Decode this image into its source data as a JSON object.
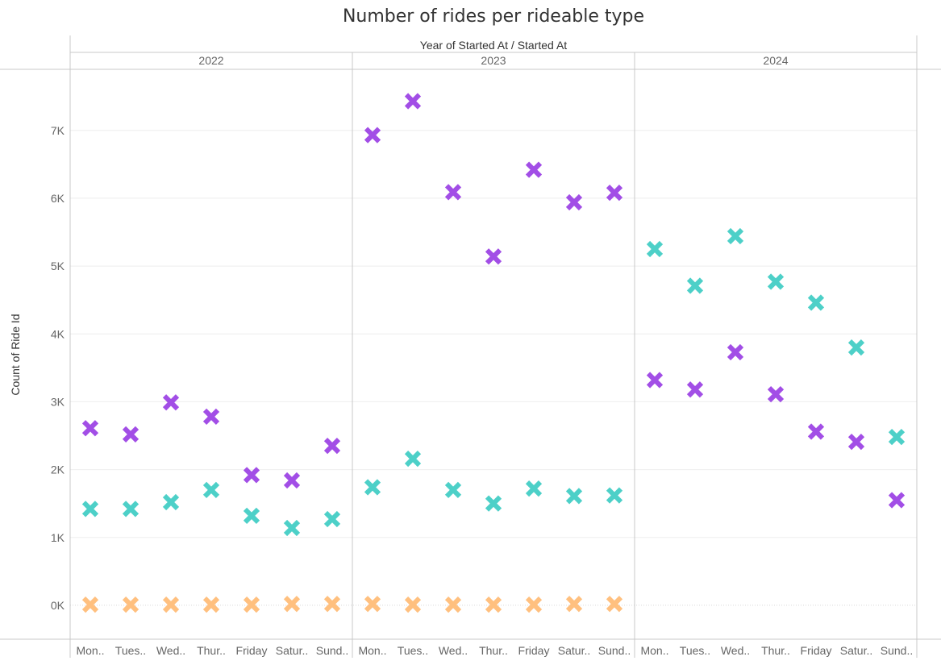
{
  "chart_data": {
    "type": "scatter",
    "title": "Number of rides per rideable type",
    "column_header": "Year of Started At / Started At",
    "ylabel": "Count of Ride Id",
    "ylim": [
      -500,
      7900
    ],
    "yticks": [
      0,
      1000,
      2000,
      3000,
      4000,
      5000,
      6000,
      7000
    ],
    "ytick_labels": [
      "0K",
      "1K",
      "2K",
      "3K",
      "4K",
      "5K",
      "6K",
      "7K"
    ],
    "grid": true,
    "marker": "x",
    "years": [
      "2022",
      "2023",
      "2024"
    ],
    "day_labels": [
      "Mon..",
      "Tues..",
      "Wed..",
      "Thur..",
      "Friday",
      "Satur..",
      "Sund.."
    ],
    "series": [
      {
        "color": "#a24ee6",
        "values": {
          "2022": [
            2610,
            2520,
            2990,
            2780,
            1920,
            1840,
            2350
          ],
          "2023": [
            6930,
            7430,
            6090,
            5140,
            6420,
            5940,
            6080
          ],
          "2024": [
            3320,
            3180,
            3730,
            3110,
            2560,
            2410,
            1550
          ]
        }
      },
      {
        "color": "#4dd0c8",
        "values": {
          "2022": [
            1420,
            1420,
            1520,
            1700,
            1320,
            1140,
            1270
          ],
          "2023": [
            1740,
            2160,
            1700,
            1500,
            1720,
            1610,
            1620
          ],
          "2024": [
            5250,
            4710,
            5440,
            4770,
            4460,
            3800,
            2480
          ]
        }
      },
      {
        "color": "#ffc07f",
        "values": {
          "2022": [
            10,
            10,
            10,
            10,
            10,
            20,
            20
          ],
          "2023": [
            20,
            10,
            10,
            10,
            10,
            20,
            20
          ],
          "2024": []
        }
      }
    ]
  }
}
